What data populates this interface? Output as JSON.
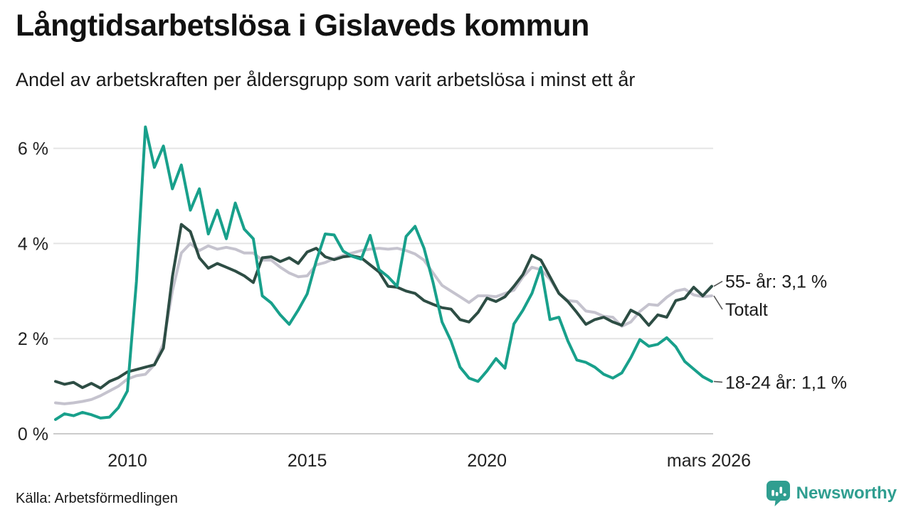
{
  "header": {
    "title": "Långtidsarbetslösa i Gislaveds kommun",
    "subtitle": "Andel av arbetskraften per åldersgrupp som varit arbetslösa i minst ett år"
  },
  "footer": {
    "source": "Källa: Arbetsförmedlingen",
    "brand_name": "Newsworthy",
    "brand_icon": "bar-chart-speech-bubble-icon"
  },
  "colors": {
    "series_55_plus": "#2d4d44",
    "series_total": "#c5c3ce",
    "series_18_24": "#18a08b",
    "gridline": "#e4e4e4",
    "zero_line": "#cccccc",
    "connector": "#555555",
    "brand_teal": "#2f9e90",
    "text_dark": "#1a1a1a"
  },
  "chart_data": {
    "type": "line",
    "title": "Långtidsarbetslösa i Gislaveds kommun",
    "subtitle": "Andel av arbetskraften per åldersgrupp som varit arbetslösa i minst ett år",
    "unit": "%",
    "grid": true,
    "legend_position": "end-of-line-labels",
    "ylim": [
      0,
      6.6
    ],
    "y_ticks": [
      {
        "label": "0 %",
        "value": 0
      },
      {
        "label": "2 %",
        "value": 2
      },
      {
        "label": "4 %",
        "value": 4
      },
      {
        "label": "6 %",
        "value": 6
      }
    ],
    "x_ticks": [
      {
        "label": "2010",
        "year": 2010
      },
      {
        "label": "2015",
        "year": 2015
      },
      {
        "label": "2020",
        "year": 2020
      },
      {
        "label": "mars 2026",
        "year": 2026.17
      }
    ],
    "x": [
      2008,
      2008.25,
      2008.5,
      2008.75,
      2009,
      2009.25,
      2009.5,
      2009.75,
      2010,
      2010.25,
      2010.5,
      2010.75,
      2011,
      2011.25,
      2011.5,
      2011.75,
      2012,
      2012.25,
      2012.5,
      2012.75,
      2013,
      2013.25,
      2013.5,
      2013.75,
      2014,
      2014.25,
      2014.5,
      2014.75,
      2015,
      2015.25,
      2015.5,
      2015.75,
      2016,
      2016.25,
      2016.5,
      2016.75,
      2017,
      2017.25,
      2017.5,
      2017.75,
      2018,
      2018.25,
      2018.5,
      2018.75,
      2019,
      2019.25,
      2019.5,
      2019.75,
      2020,
      2020.25,
      2020.5,
      2020.75,
      2021,
      2021.25,
      2021.5,
      2021.75,
      2022,
      2022.25,
      2022.5,
      2022.75,
      2023,
      2023.25,
      2023.5,
      2023.75,
      2024,
      2024.25,
      2024.5,
      2024.75,
      2025,
      2025.25,
      2025.5,
      2025.75,
      2026,
      2026.25
    ],
    "series": [
      {
        "id": "age_55_plus",
        "name": "55- år",
        "end_label": "55- år: 3,1 %",
        "end_value": "3,1 %",
        "color": "#2d4d44",
        "z": 2,
        "values": [
          1.1,
          1.04,
          1.08,
          0.97,
          1.06,
          0.96,
          1.1,
          1.18,
          1.3,
          1.35,
          1.4,
          1.45,
          1.8,
          3.3,
          4.4,
          4.25,
          3.7,
          3.48,
          3.58,
          3.5,
          3.42,
          3.32,
          3.18,
          3.7,
          3.72,
          3.62,
          3.7,
          3.58,
          3.82,
          3.9,
          3.72,
          3.66,
          3.72,
          3.74,
          3.7,
          3.55,
          3.4,
          3.1,
          3.08,
          3.0,
          2.95,
          2.8,
          2.72,
          2.65,
          2.62,
          2.4,
          2.35,
          2.55,
          2.85,
          2.78,
          2.88,
          3.1,
          3.35,
          3.75,
          3.65,
          3.3,
          2.95,
          2.78,
          2.55,
          2.3,
          2.4,
          2.45,
          2.35,
          2.28,
          2.6,
          2.5,
          2.28,
          2.5,
          2.45,
          2.8,
          2.85,
          3.08,
          2.9,
          3.1
        ]
      },
      {
        "id": "total",
        "name": "Totalt",
        "end_label": "Totalt",
        "end_value": "",
        "color": "#c5c3ce",
        "z": 1,
        "values": [
          0.65,
          0.63,
          0.65,
          0.68,
          0.72,
          0.8,
          0.9,
          1.0,
          1.15,
          1.22,
          1.25,
          1.45,
          1.9,
          3.0,
          3.8,
          4.0,
          3.85,
          3.95,
          3.88,
          3.92,
          3.88,
          3.8,
          3.8,
          3.65,
          3.65,
          3.5,
          3.38,
          3.3,
          3.32,
          3.55,
          3.6,
          3.68,
          3.75,
          3.8,
          3.85,
          3.88,
          3.9,
          3.88,
          3.9,
          3.85,
          3.78,
          3.65,
          3.38,
          3.12,
          3.0,
          2.88,
          2.76,
          2.9,
          2.9,
          2.88,
          2.95,
          3.02,
          3.3,
          3.5,
          3.45,
          3.25,
          2.95,
          2.8,
          2.78,
          2.58,
          2.55,
          2.47,
          2.45,
          2.26,
          2.35,
          2.57,
          2.72,
          2.7,
          2.87,
          3.0,
          3.04,
          2.92,
          2.88,
          2.9
        ]
      },
      {
        "id": "age_18_24",
        "name": "18-24 år",
        "end_label": "18-24 år: 1,1 %",
        "end_value": "1,1 %",
        "color": "#18a08b",
        "z": 3,
        "values": [
          0.3,
          0.42,
          0.38,
          0.45,
          0.4,
          0.33,
          0.35,
          0.55,
          0.9,
          3.2,
          6.45,
          5.6,
          6.05,
          5.15,
          5.65,
          4.7,
          5.15,
          4.2,
          4.7,
          4.1,
          4.85,
          4.3,
          4.1,
          2.9,
          2.75,
          2.5,
          2.3,
          2.6,
          2.94,
          3.63,
          4.2,
          4.18,
          3.84,
          3.73,
          3.67,
          4.17,
          3.45,
          3.3,
          3.1,
          4.15,
          4.36,
          3.9,
          3.18,
          2.35,
          1.95,
          1.4,
          1.17,
          1.1,
          1.32,
          1.58,
          1.38,
          2.31,
          2.6,
          2.95,
          3.5,
          2.4,
          2.45,
          1.95,
          1.55,
          1.5,
          1.4,
          1.25,
          1.17,
          1.28,
          1.6,
          1.98,
          1.84,
          1.88,
          2.02,
          1.83,
          1.52,
          1.36,
          1.2,
          1.1
        ]
      }
    ]
  }
}
